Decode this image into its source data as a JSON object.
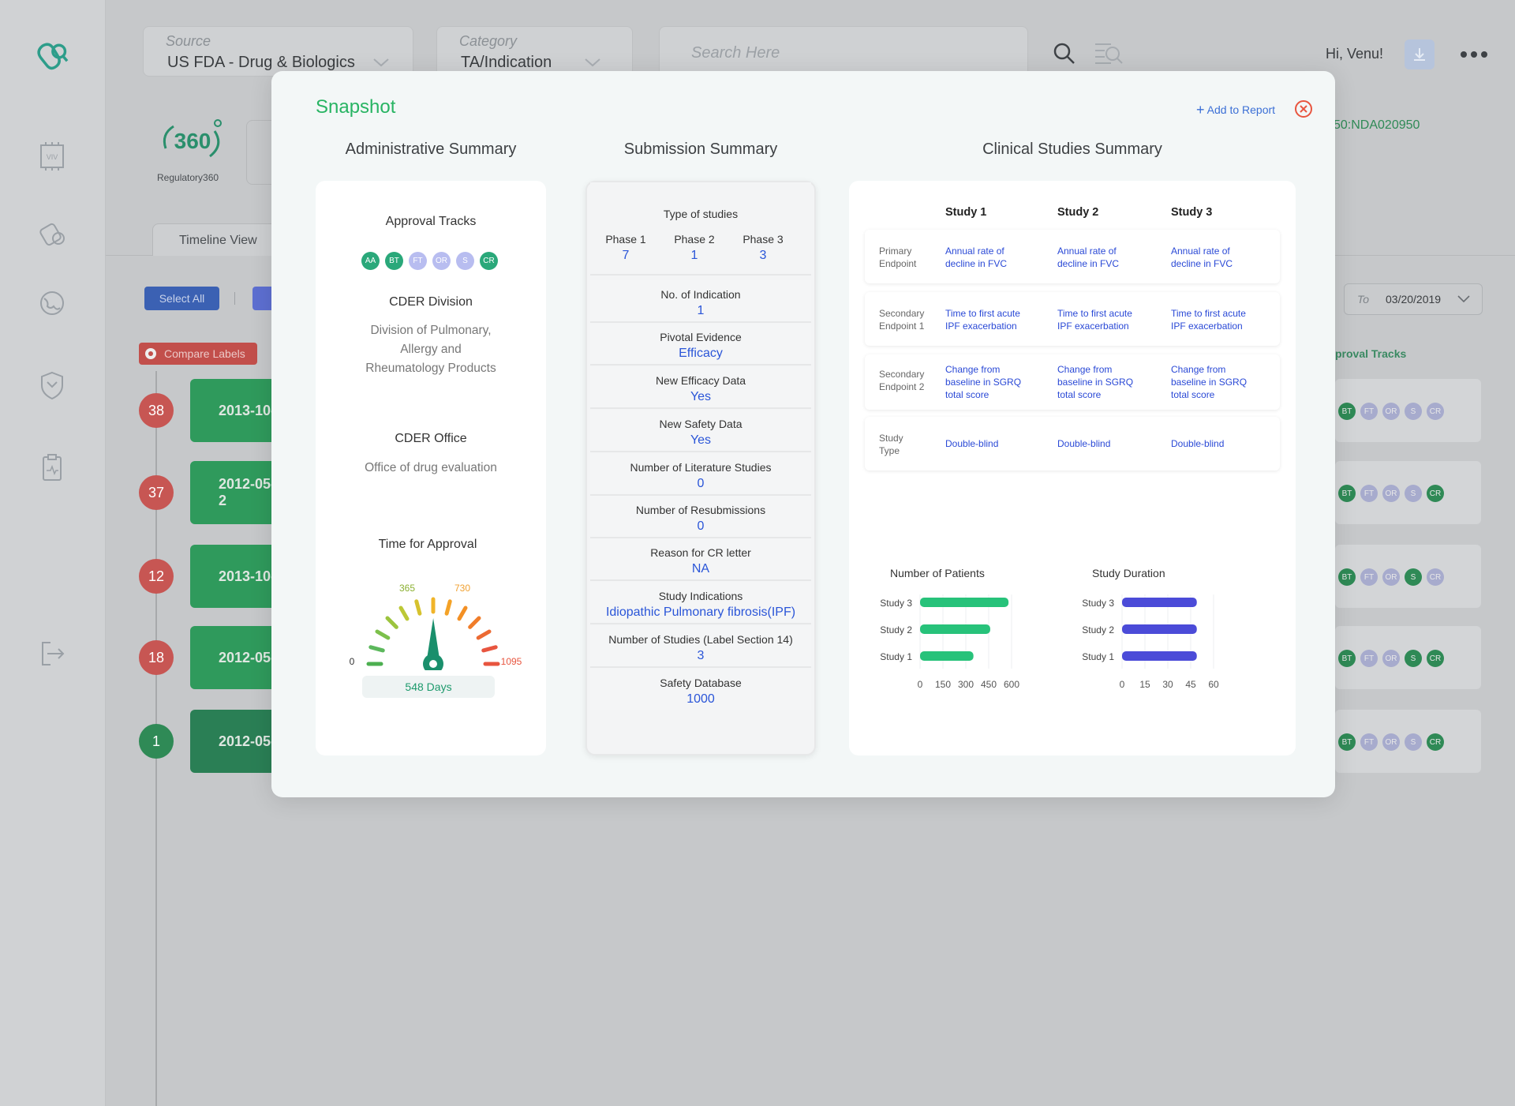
{
  "header": {
    "source": {
      "label": "Source",
      "value": "US FDA - Drug & Biologics"
    },
    "category": {
      "label": "Category",
      "value": "TA/Indication"
    },
    "search_placeholder": "Search Here",
    "greeting": "Hi, Venu!"
  },
  "background": {
    "logo_text": "360",
    "logo_caption": "Regulatory360",
    "timeline_tab": "Timeline View",
    "select_all": "Select All",
    "compare_labels": "Compare Labels",
    "nda_text": "50:NDA020950",
    "date_to_label": "To",
    "date_to_value": "03/20/2019",
    "approval_tracks_header": "proval Tracks",
    "rows": [
      {
        "count": "38",
        "date": "2013-10-",
        "color": "#c75653"
      },
      {
        "count": "37",
        "date": "2012-05-2",
        "color": "#c75653"
      },
      {
        "count": "12",
        "date": "2013-10-",
        "color": "#c75653"
      },
      {
        "count": "18",
        "date": "2012-05-",
        "color": "#c75653"
      },
      {
        "count": "1",
        "date": "2012-05-",
        "color": "#2f8a56"
      }
    ],
    "row_badges": [
      "BT",
      "FT",
      "OR",
      "S",
      "CR"
    ]
  },
  "modal": {
    "title": "Snapshot",
    "add_to_report": "Add to Report",
    "columns": {
      "admin": "Administrative Summary",
      "submission": "Submission Summary",
      "clinical": "Clinical Studies Summary"
    },
    "admin": {
      "approval_tracks_label": "Approval Tracks",
      "tracks": [
        {
          "code": "AA",
          "color": "#2aa87a"
        },
        {
          "code": "BT",
          "color": "#2aa87a"
        },
        {
          "code": "FT",
          "color": "#b8bdf0"
        },
        {
          "code": "OR",
          "color": "#b8bdf0"
        },
        {
          "code": "S",
          "color": "#b8bdf0"
        },
        {
          "code": "CR",
          "color": "#2aa87a"
        }
      ],
      "division_label": "CDER Division",
      "division_lines": [
        "Division of Pulmonary,",
        "Allergy and",
        "Rheumatology Products"
      ],
      "office_label": "CDER Office",
      "office_value": "Office of drug evaluation",
      "time_label": "Time for Approval",
      "gauge": {
        "min": "0",
        "t1": "365",
        "t2": "730",
        "max": "1095",
        "value": 548,
        "value_text": "548 Days"
      }
    },
    "submission": {
      "type_label": "Type of studies",
      "phases": [
        {
          "label": "Phase 1",
          "value": "7"
        },
        {
          "label": "Phase 2",
          "value": "1"
        },
        {
          "label": "Phase 3",
          "value": "3"
        }
      ],
      "rows": [
        {
          "label": "No. of Indication",
          "value": "1"
        },
        {
          "label": "Pivotal Evidence",
          "value": "Efficacy"
        },
        {
          "label": "New Efficacy Data",
          "value": "Yes"
        },
        {
          "label": "New Safety Data",
          "value": "Yes"
        },
        {
          "label": "Number of Literature Studies",
          "value": "0"
        },
        {
          "label": "Number of Resubmissions",
          "value": "0"
        },
        {
          "label": "Reason for CR letter",
          "value": "NA"
        },
        {
          "label": "Study Indications",
          "value": "Idiopathic Pulmonary fibrosis(IPF)"
        },
        {
          "label": "Number of Studies (Label Section 14)",
          "value": "3"
        },
        {
          "label": "Safety Database",
          "value": "1000"
        }
      ]
    },
    "clinical": {
      "studies": [
        "Study 1",
        "Study 2",
        "Study 3"
      ],
      "rows": [
        {
          "label": [
            "Primary",
            "Endpoint"
          ],
          "values": [
            [
              "Annual rate of",
              "decline in FVC"
            ],
            [
              "Annual rate of",
              "decline in FVC"
            ],
            [
              "Annual rate of",
              "decline in FVC"
            ]
          ]
        },
        {
          "label": [
            "Secondary",
            "Endpoint 1"
          ],
          "values": [
            [
              "Time to first acute",
              "IPF exacerbation"
            ],
            [
              "Time to first acute",
              "IPF exacerbation"
            ],
            [
              "Time to first acute",
              "IPF exacerbation"
            ]
          ]
        },
        {
          "label": [
            "Secondary",
            "Endpoint 2"
          ],
          "values": [
            [
              "Change from",
              "baseline in SGRQ",
              "total score"
            ],
            [
              "Change from",
              "baseline in SGRQ",
              "total score"
            ],
            [
              "Change from",
              "baseline in SGRQ",
              "total score"
            ]
          ]
        },
        {
          "label": [
            "Study",
            "Type"
          ],
          "values": [
            [
              "Double-blind"
            ],
            [
              "Double-blind"
            ],
            [
              "Double-blind"
            ]
          ]
        }
      ]
    }
  },
  "colors": {
    "accent_green": "#28b463",
    "link_blue": "#2a55d8",
    "patients_bar": "#27c27a",
    "duration_bar": "#4b4bd8",
    "close_red": "#e8553f"
  },
  "chart_data": [
    {
      "type": "bar",
      "orientation": "horizontal",
      "title": "Number of Patients",
      "categories": [
        "Study 3",
        "Study 2",
        "Study 1"
      ],
      "values": [
        580,
        460,
        350
      ],
      "xlim": [
        0,
        600
      ],
      "ticks": [
        "0",
        "150",
        "300",
        "450",
        "600"
      ]
    },
    {
      "type": "bar",
      "orientation": "horizontal",
      "title": "Study Duration",
      "categories": [
        "Study 3",
        "Study 2",
        "Study 1"
      ],
      "values": [
        49,
        49,
        49
      ],
      "xlim": [
        0,
        60
      ],
      "ticks": [
        "0",
        "15",
        "30",
        "45",
        "60"
      ]
    }
  ]
}
